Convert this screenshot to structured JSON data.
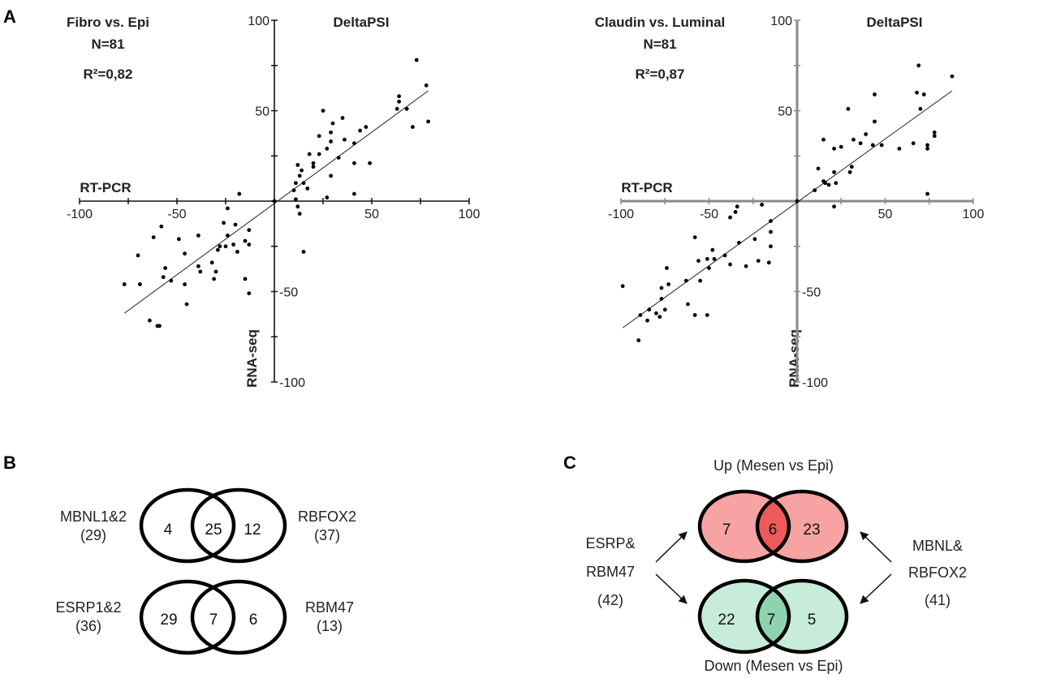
{
  "panels": {
    "a": "A",
    "b": "B",
    "c": "C"
  },
  "chart_data": [
    {
      "type": "scatter",
      "title": "Fibro vs. Epi",
      "n_label": "N=81",
      "r2_label": "R²=0,82",
      "corner_label": "DeltaPSI",
      "xlabel": "RT-PCR",
      "ylabel": "RNA-seq",
      "xlim": [
        -100,
        100
      ],
      "ylim": [
        -100,
        100
      ],
      "x_ticks": [
        "-100",
        "-50",
        "50",
        "100"
      ],
      "y_ticks": [
        "100",
        "50",
        "-50",
        "-100"
      ],
      "axis_color": "#111111",
      "fit_line": [
        [
          -77,
          -62
        ],
        [
          79,
          61
        ]
      ],
      "points": [
        [
          73,
          78
        ],
        [
          78,
          64
        ],
        [
          64,
          58
        ],
        [
          64,
          55
        ],
        [
          63,
          51
        ],
        [
          68,
          51
        ],
        [
          71,
          41
        ],
        [
          79,
          44
        ],
        [
          25,
          50
        ],
        [
          35,
          46
        ],
        [
          30,
          43
        ],
        [
          47,
          41
        ],
        [
          44,
          39
        ],
        [
          23,
          36
        ],
        [
          29,
          38
        ],
        [
          29,
          33
        ],
        [
          36,
          34
        ],
        [
          41,
          32
        ],
        [
          27,
          29
        ],
        [
          18,
          26
        ],
        [
          23,
          26
        ],
        [
          33,
          24
        ],
        [
          20,
          21
        ],
        [
          20,
          19
        ],
        [
          41,
          21
        ],
        [
          49,
          21
        ],
        [
          12,
          20
        ],
        [
          14,
          17
        ],
        [
          13,
          14
        ],
        [
          29,
          14
        ],
        [
          11,
          10
        ],
        [
          15,
          10
        ],
        [
          17,
          7
        ],
        [
          10,
          6
        ],
        [
          27,
          2
        ],
        [
          41,
          4
        ],
        [
          11,
          1
        ],
        [
          12,
          -3
        ],
        [
          13,
          -7
        ],
        [
          15,
          -28
        ],
        [
          0,
          0
        ],
        [
          -18,
          4
        ],
        [
          -24,
          -4
        ],
        [
          -26,
          -12
        ],
        [
          -20,
          -13
        ],
        [
          -13,
          -16
        ],
        [
          -24,
          -19
        ],
        [
          -39,
          -19
        ],
        [
          -49,
          -21
        ],
        [
          -62,
          -20
        ],
        [
          -58,
          -14
        ],
        [
          -15,
          -22
        ],
        [
          -13,
          -24
        ],
        [
          -21,
          -24
        ],
        [
          -28,
          -25
        ],
        [
          -25,
          -25
        ],
        [
          -29,
          -27
        ],
        [
          -19,
          -28
        ],
        [
          -46,
          -29
        ],
        [
          -70,
          -30
        ],
        [
          -32,
          -34
        ],
        [
          -39,
          -36
        ],
        [
          -56,
          -37
        ],
        [
          -30,
          -39
        ],
        [
          -38,
          -39
        ],
        [
          -57,
          -42
        ],
        [
          -31,
          -43
        ],
        [
          -15,
          -43
        ],
        [
          -53,
          -44
        ],
        [
          -77,
          -46
        ],
        [
          -69,
          -46
        ],
        [
          -46,
          -46
        ],
        [
          -13,
          -51
        ],
        [
          -45,
          -57
        ],
        [
          -64,
          -66
        ],
        [
          -60,
          -69
        ],
        [
          -59,
          -69
        ]
      ]
    },
    {
      "type": "scatter",
      "title": "Claudin vs. Luminal",
      "n_label": "N=81",
      "r2_label": "R²=0,87",
      "corner_label": "DeltaPSI",
      "xlabel": "RT-PCR",
      "ylabel": "RNA-seq",
      "xlim": [
        -100,
        100
      ],
      "ylim": [
        -100,
        100
      ],
      "x_ticks": [
        "-100",
        "-50",
        "50",
        "100"
      ],
      "y_ticks": [
        "100",
        "50",
        "-50",
        "-100"
      ],
      "axis_color": "#8a8a8a",
      "fit_line": [
        [
          -99,
          -70
        ],
        [
          88,
          61
        ]
      ],
      "points": [
        [
          69,
          75
        ],
        [
          88,
          69
        ],
        [
          44,
          59
        ],
        [
          68,
          60
        ],
        [
          72,
          59
        ],
        [
          29,
          51
        ],
        [
          70,
          51
        ],
        [
          44,
          44
        ],
        [
          15,
          34
        ],
        [
          39,
          37
        ],
        [
          32,
          34
        ],
        [
          36,
          32
        ],
        [
          43,
          31
        ],
        [
          48,
          31
        ],
        [
          25,
          30
        ],
        [
          21,
          29
        ],
        [
          58,
          29
        ],
        [
          66,
          32
        ],
        [
          74,
          31
        ],
        [
          74,
          29
        ],
        [
          78,
          38
        ],
        [
          78,
          36
        ],
        [
          12,
          18
        ],
        [
          31,
          19
        ],
        [
          30,
          16
        ],
        [
          21,
          16
        ],
        [
          15,
          11
        ],
        [
          16,
          10
        ],
        [
          18,
          9
        ],
        [
          22,
          10
        ],
        [
          10,
          6
        ],
        [
          74,
          4
        ],
        [
          21,
          -3
        ],
        [
          0,
          0
        ],
        [
          -20,
          -2
        ],
        [
          -34,
          -3
        ],
        [
          -35,
          -6
        ],
        [
          -38,
          -9
        ],
        [
          -15,
          -11
        ],
        [
          -15,
          -17
        ],
        [
          -15,
          -25
        ],
        [
          -58,
          -20
        ],
        [
          -24,
          -21
        ],
        [
          -33,
          -23
        ],
        [
          -48,
          -27
        ],
        [
          -41,
          -30
        ],
        [
          -51,
          -32
        ],
        [
          -47,
          -32
        ],
        [
          -56,
          -33
        ],
        [
          -22,
          -33
        ],
        [
          -16,
          -34
        ],
        [
          -38,
          -35
        ],
        [
          -29,
          -36
        ],
        [
          -50,
          -37
        ],
        [
          -74,
          -37
        ],
        [
          -55,
          -44
        ],
        [
          -63,
          -44
        ],
        [
          -73,
          -46
        ],
        [
          -77,
          -48
        ],
        [
          -99,
          -47
        ],
        [
          -77,
          -54
        ],
        [
          -62,
          -57
        ],
        [
          -84,
          -60
        ],
        [
          -75,
          -60
        ],
        [
          -80,
          -62
        ],
        [
          -89,
          -63
        ],
        [
          -78,
          -64
        ],
        [
          -58,
          -63
        ],
        [
          -51,
          -63
        ],
        [
          -85,
          -66
        ],
        [
          -90,
          -77
        ]
      ]
    }
  ],
  "venn_b": {
    "top": {
      "left_label": "MBNL1&2",
      "left_total": "(29)",
      "right_label": "RBFOX2",
      "right_total": "(37)",
      "left_only": "4",
      "both": "25",
      "right_only": "12"
    },
    "bottom": {
      "left_label": "ESRP1&2",
      "left_total": "(36)",
      "right_label": "RBM47",
      "right_total": "(13)",
      "left_only": "29",
      "both": "7",
      "right_only": "6"
    }
  },
  "venn_c": {
    "up_title": "Up (Mesen vs Epi)",
    "down_title": "Down (Mesen vs Epi)",
    "left_label_1": "ESRP&",
    "left_label_2": "RBM47",
    "left_total": "(42)",
    "right_label_1": "MBNL&",
    "right_label_2": "RBFOX2",
    "right_total": "(41)",
    "up": {
      "left_only": "7",
      "both": "6",
      "right_only": "23"
    },
    "down": {
      "left_only": "22",
      "both": "7",
      "right_only": "5"
    },
    "colors": {
      "up_fill": "#f7a3a3",
      "up_overlap": "#ee5a5a",
      "down_fill": "#c7ecd9",
      "down_overlap": "#8fd3ae"
    }
  }
}
